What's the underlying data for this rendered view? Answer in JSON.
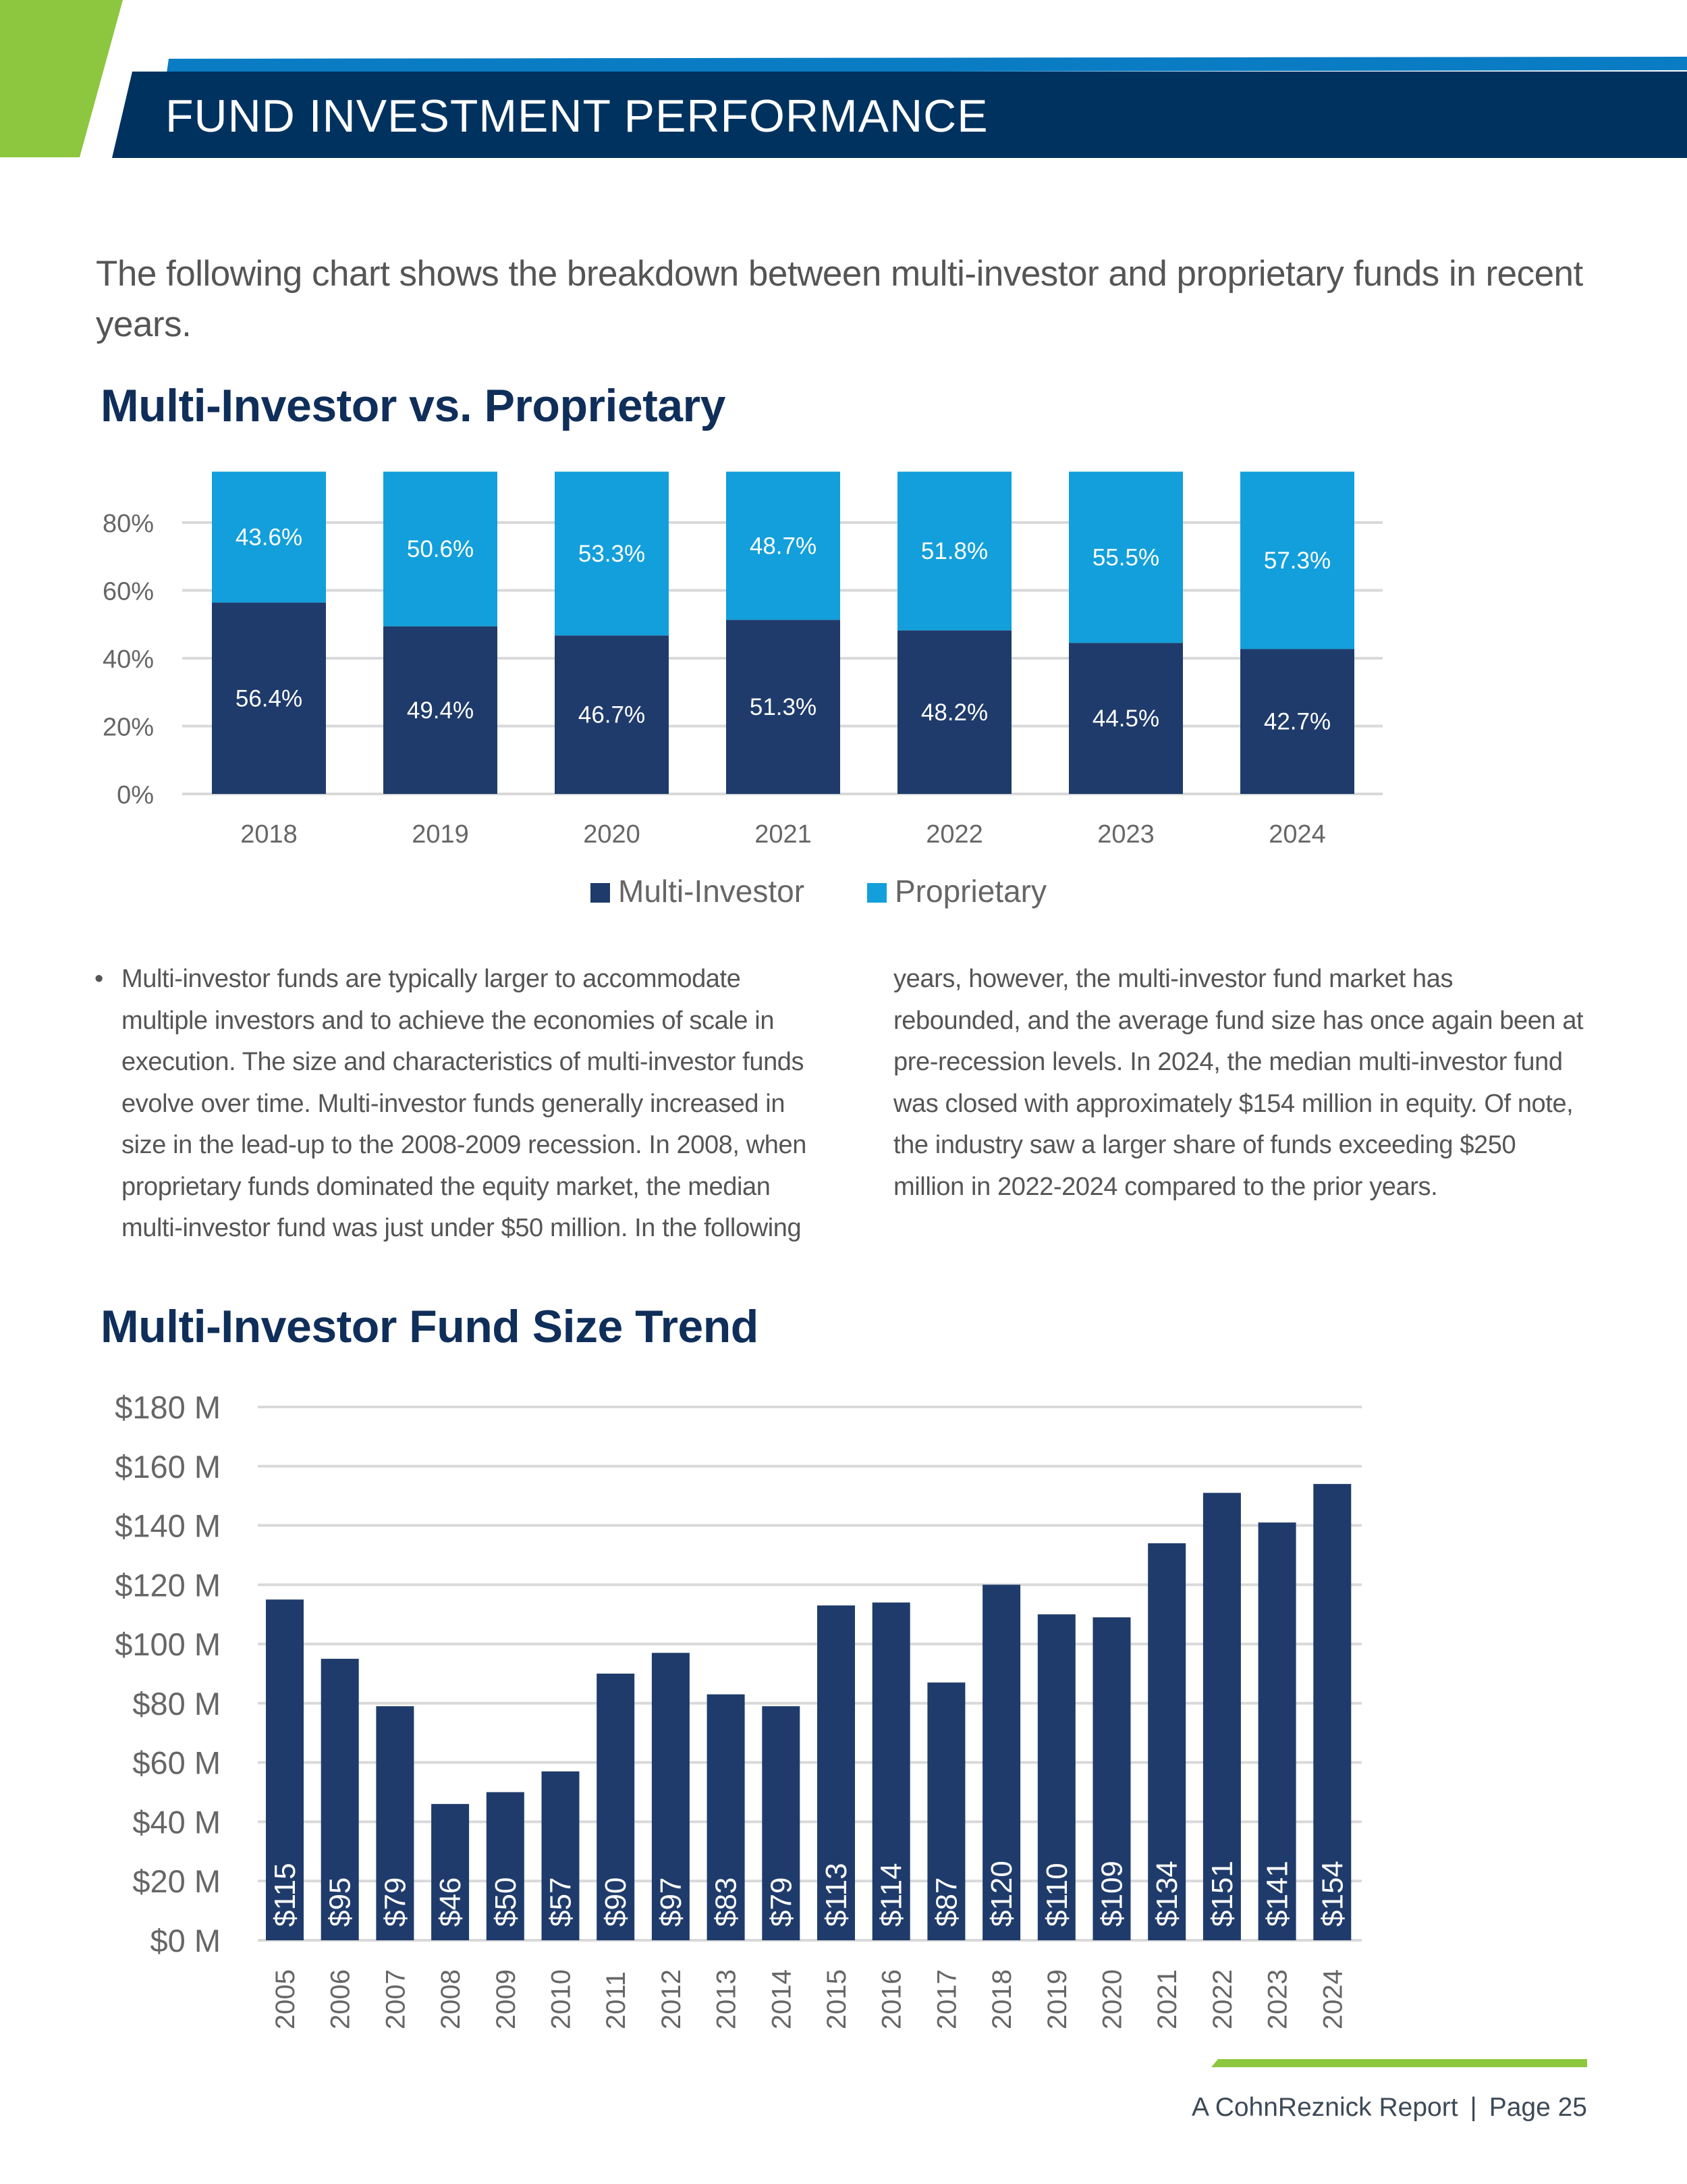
{
  "header": {
    "title": "FUND INVESTMENT PERFORMANCE"
  },
  "intro": "The following chart shows the breakdown between multi-investor and proprietary funds in recent years.",
  "colors": {
    "accent_green": "#8dc63f",
    "header_navy": "#00325f",
    "header_blue": "#0a7cc4",
    "heading": "#0f2e5a",
    "multi_investor": "#1f3b6b",
    "proprietary": "#139fdb"
  },
  "body": {
    "bullet": "•",
    "paragraph": "Multi-investor funds are typically larger to accommodate multiple investors and to achieve the economies of scale in execution. The size and characteristics of multi-investor funds evolve over time. Multi-investor funds generally increased in size in the lead-up to the 2008-2009 recession. In 2008, when proprietary funds dominated the equity market, the median multi-investor fund was just under $50 million. In the following years, however, the multi-investor fund market has rebounded, and the average fund size has once again been at pre-recession levels. In 2024, the median multi-investor fund was closed with approximately $154 million in equity. Of note, the industry saw a larger share of funds exceeding $250 million in 2022-2024 compared to the prior years."
  },
  "footer": {
    "report": "A CohnReznick Report",
    "separator": "|",
    "page": "Page 25"
  },
  "chart_data": [
    {
      "type": "bar",
      "stacked": true,
      "title": "Multi-Investor vs. Proprietary",
      "categories": [
        "2018",
        "2019",
        "2020",
        "2021",
        "2022",
        "2023",
        "2024"
      ],
      "series": [
        {
          "name": "Multi-Investor",
          "values": [
            56.4,
            49.4,
            46.7,
            51.3,
            48.2,
            44.5,
            42.7
          ],
          "labels": [
            "56.4%",
            "49.4%",
            "46.7%",
            "51.3%",
            "48.2%",
            "44.5%",
            "42.7%"
          ]
        },
        {
          "name": "Proprietary",
          "values": [
            43.6,
            50.6,
            53.3,
            48.7,
            51.8,
            55.5,
            57.3
          ],
          "labels": [
            "43.6%",
            "50.6%",
            "53.3%",
            "48.7%",
            "51.8%",
            "55.5%",
            "57.3%"
          ]
        }
      ],
      "yticks": [
        "0%",
        "20%",
        "40%",
        "60%",
        "80%"
      ],
      "ytick_values": [
        0,
        20,
        40,
        60,
        80
      ],
      "ylim": [
        0,
        95
      ],
      "grid": true,
      "legend": "bottom"
    },
    {
      "type": "bar",
      "title": "Multi-Investor Fund Size Trend",
      "categories": [
        "2005",
        "2006",
        "2007",
        "2008",
        "2009",
        "2010",
        "2011",
        "2012",
        "2013",
        "2014",
        "2015",
        "2016",
        "2017",
        "2018",
        "2019",
        "2020",
        "2021",
        "2022",
        "2023",
        "2024"
      ],
      "values": [
        115,
        95,
        79,
        46,
        50,
        57,
        90,
        97,
        83,
        79,
        113,
        114,
        87,
        120,
        110,
        109,
        134,
        151,
        141,
        154
      ],
      "labels": [
        "$115",
        "$95",
        "$79",
        "$46",
        "$50",
        "$57",
        "$90",
        "$97",
        "$83",
        "$79",
        "$113",
        "$114",
        "$87",
        "$120",
        "$110",
        "$109",
        "$134",
        "$151",
        "$141",
        "$154"
      ],
      "yticks": [
        "$0 M",
        "$20 M",
        "$40 M",
        "$60 M",
        "$80 M",
        "$100 M",
        "$120 M",
        "$140 M",
        "$160 M",
        "$180 M"
      ],
      "ytick_values": [
        0,
        20,
        40,
        60,
        80,
        100,
        120,
        140,
        160,
        180
      ],
      "ylim": [
        0,
        180
      ],
      "grid": true
    }
  ]
}
